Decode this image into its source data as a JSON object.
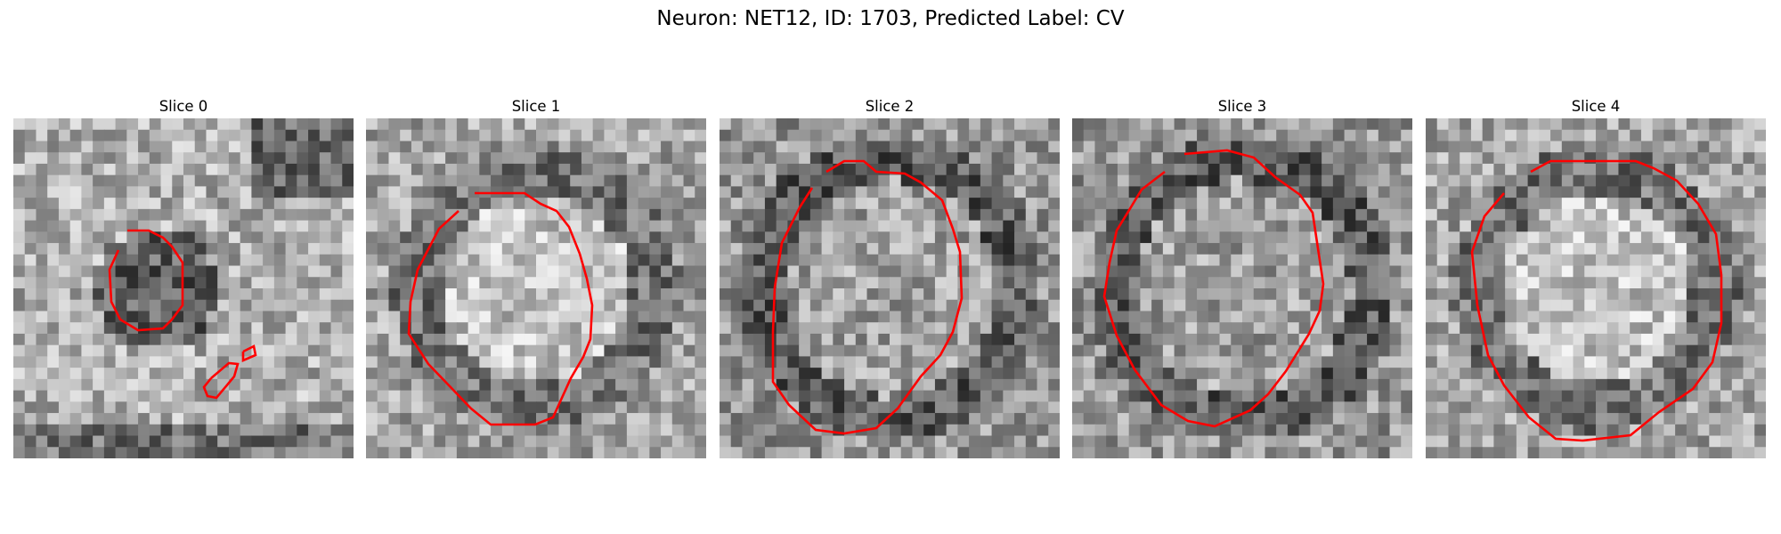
{
  "figure": {
    "title": "Neuron: NET12, ID: 1703, Predicted Label: CV",
    "colors": {
      "contour": "#ff0000",
      "colormap": "gray"
    },
    "slices": [
      {
        "label": "Slice 0",
        "pattern": "small-dark-blob-with-fragment"
      },
      {
        "label": "Slice 1",
        "pattern": "bright-center-dark-rim"
      },
      {
        "label": "Slice 2",
        "pattern": "gray-disk-dark-rim"
      },
      {
        "label": "Slice 3",
        "pattern": "gray-disk-dark-rim"
      },
      {
        "label": "Slice 4",
        "pattern": "bright-center-dark-rim"
      }
    ]
  }
}
